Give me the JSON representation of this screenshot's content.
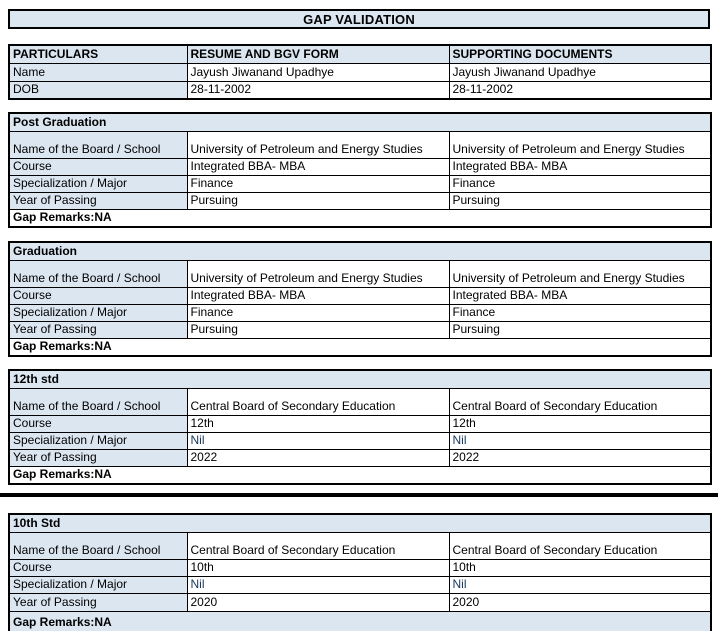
{
  "title": "GAP VALIDATION",
  "colors": {
    "header_fill": "#dce6f1",
    "border": "#000000",
    "text": "#000000",
    "nil_text": "#17375e"
  },
  "info_table": {
    "headers": [
      "PARTICULARS",
      "RESUME AND BGV FORM",
      "SUPPORTING DOCUMENTS"
    ],
    "rows": [
      {
        "label": "Name",
        "resume": "Jayush Jiwanand Upadhye",
        "supporting": "Jayush Jiwanand Upadhye"
      },
      {
        "label": "DOB",
        "resume": "28-11-2002",
        "supporting": "28-11-2002"
      }
    ]
  },
  "sections": [
    {
      "title": "Post Graduation",
      "rows": [
        {
          "label": "Name of the Board / School",
          "resume": "University of Petroleum and Energy Studies",
          "supporting": "University of Petroleum and Energy Studies"
        },
        {
          "label": "Course",
          "resume": "Integrated BBA- MBA",
          "supporting": "Integrated BBA- MBA"
        },
        {
          "label": "Specialization / Major",
          "resume": "Finance",
          "supporting": "Finance"
        },
        {
          "label": "Year of Passing",
          "resume": "Pursuing",
          "supporting": "Pursuing"
        }
      ],
      "gap_remarks": "Gap Remarks:NA"
    },
    {
      "title": "Graduation",
      "rows": [
        {
          "label": "Name of the Board / School",
          "resume": "University of Petroleum and Energy Studies",
          "supporting": "University of Petroleum and Energy Studies"
        },
        {
          "label": "Course",
          "resume": "Integrated BBA- MBA",
          "supporting": "Integrated BBA- MBA"
        },
        {
          "label": "Specialization / Major",
          "resume": "Finance",
          "supporting": "Finance"
        },
        {
          "label": "Year of Passing",
          "resume": "Pursuing",
          "supporting": "Pursuing"
        }
      ],
      "gap_remarks": "Gap Remarks:NA"
    },
    {
      "title": "12th std",
      "rows": [
        {
          "label": "Name of the Board / School",
          "resume": "Central Board of Secondary Education",
          "supporting": "Central Board of Secondary Education"
        },
        {
          "label": "Course",
          "resume": "12th",
          "supporting": "12th"
        },
        {
          "label": "Specialization / Major",
          "resume": "Nil",
          "supporting": "Nil",
          "value_color": "#17375e"
        },
        {
          "label": "Year of Passing",
          "resume": "2022",
          "supporting": "2022"
        }
      ],
      "gap_remarks": "Gap Remarks:NA"
    },
    {
      "title": "10th Std",
      "rows": [
        {
          "label": "Name of the Board / School",
          "resume": "Central Board of Secondary Education",
          "supporting": "Central Board of Secondary Education"
        },
        {
          "label": "Course",
          "resume": "10th",
          "supporting": "10th"
        },
        {
          "label": "Specialization / Major",
          "resume": "Nil",
          "supporting": "Nil",
          "value_color": "#17375e"
        },
        {
          "label": "Year of Passing",
          "resume": "2020",
          "supporting": "2020"
        }
      ],
      "gap_remarks": "Gap Remarks:NA",
      "remarks_highlighted": true
    }
  ]
}
